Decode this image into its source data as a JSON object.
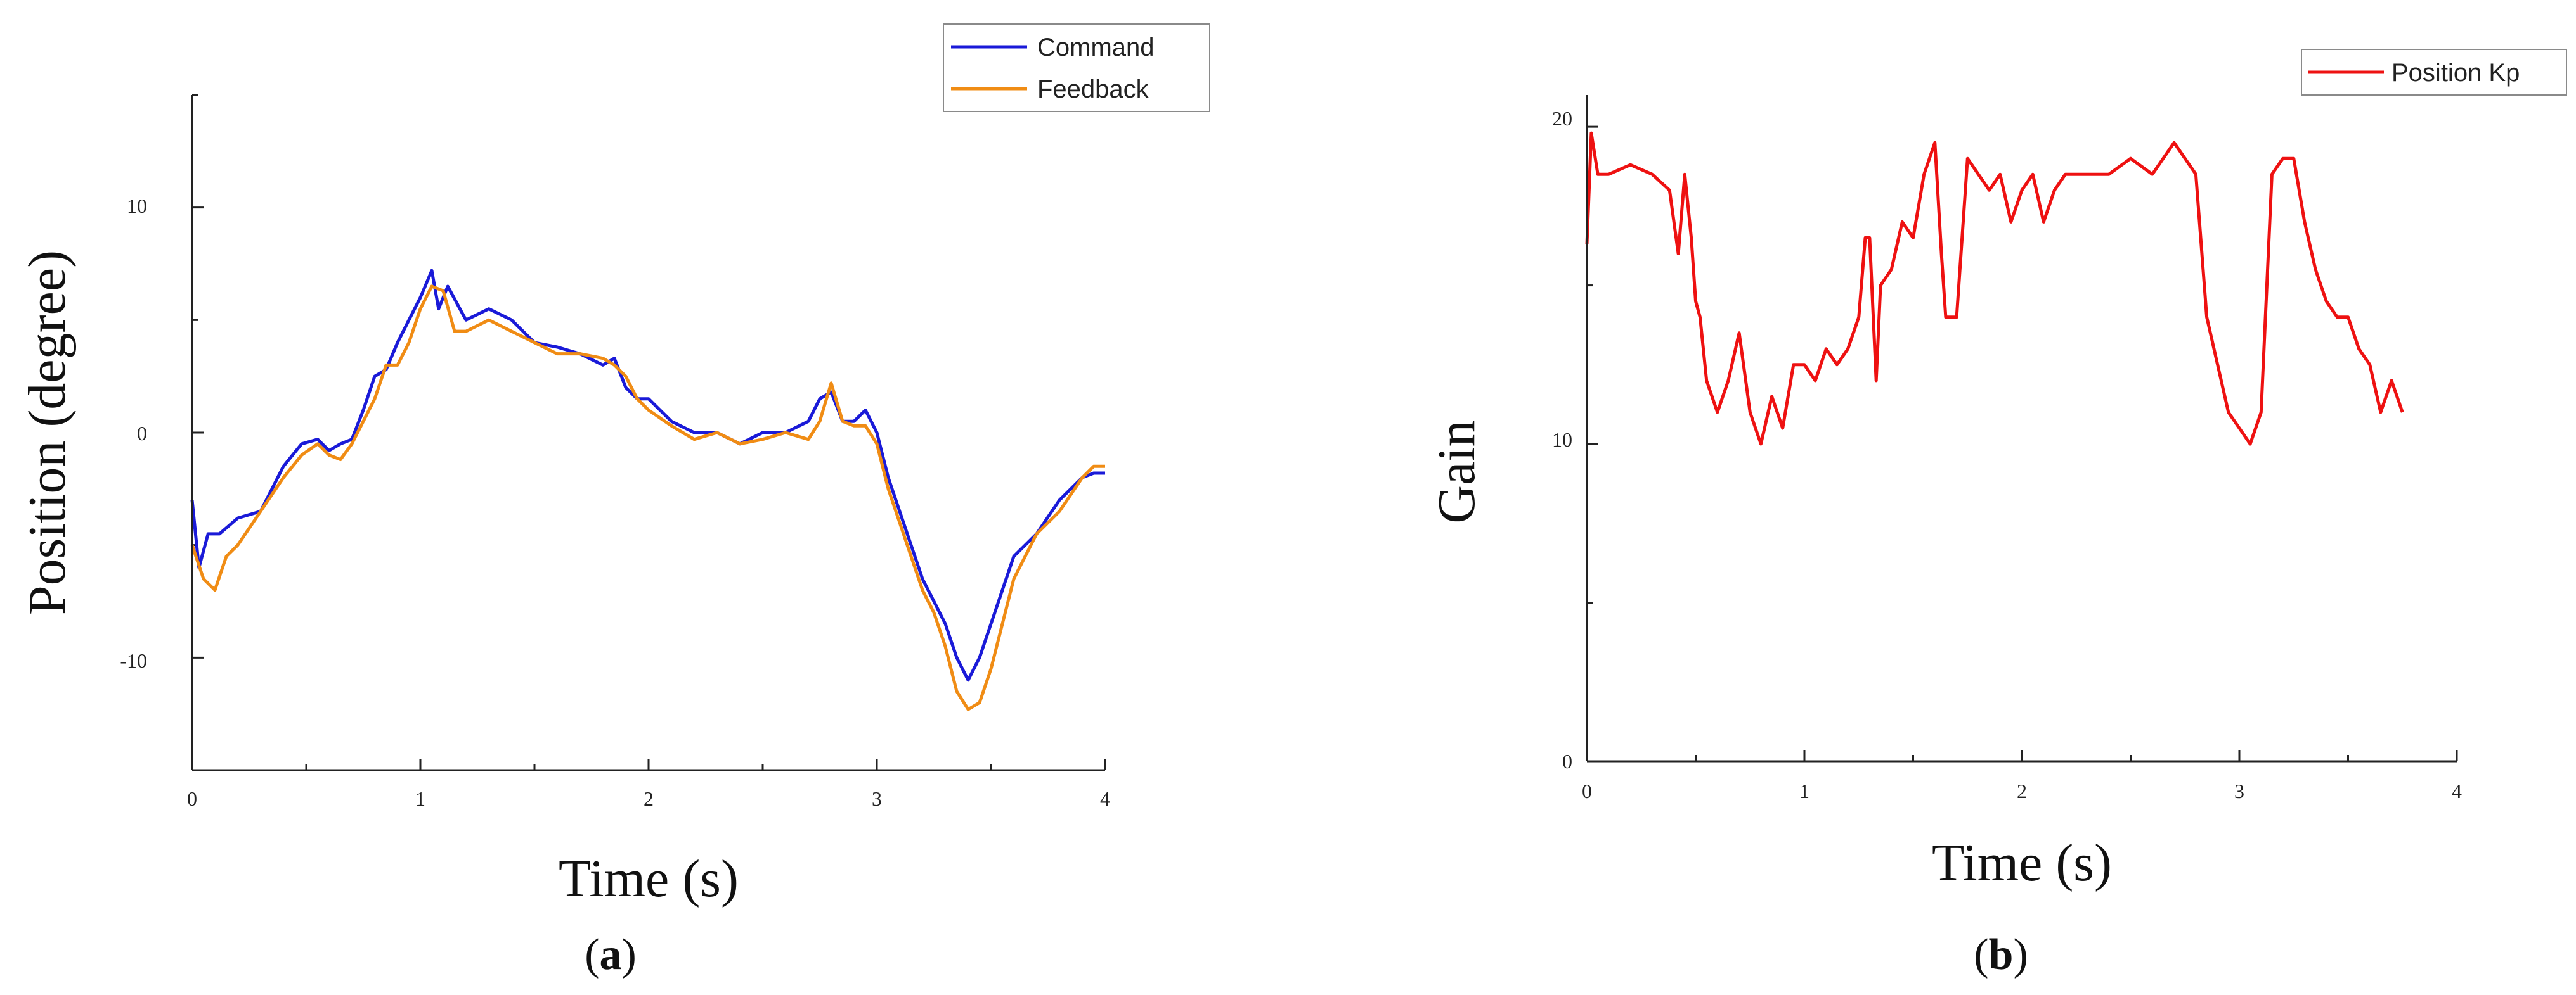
{
  "chart_data": [
    {
      "type": "line",
      "panel_label": "a",
      "xlabel": "Time (s)",
      "ylabel": "Position (degree)",
      "xlim": [
        0,
        4
      ],
      "ylim": [
        -15,
        15
      ],
      "xticks": [
        0,
        1,
        2,
        3,
        4
      ],
      "yticks": [
        -10,
        0,
        10
      ],
      "grid": false,
      "legend_position": "top-right",
      "series": [
        {
          "name": "Command",
          "color": "#1a1ad8",
          "x": [
            0.0,
            0.03,
            0.07,
            0.12,
            0.2,
            0.3,
            0.4,
            0.48,
            0.55,
            0.6,
            0.65,
            0.7,
            0.75,
            0.8,
            0.85,
            0.9,
            0.95,
            1.0,
            1.05,
            1.08,
            1.12,
            1.2,
            1.3,
            1.4,
            1.5,
            1.6,
            1.7,
            1.8,
            1.85,
            1.9,
            1.95,
            2.0,
            2.1,
            2.2,
            2.3,
            2.4,
            2.5,
            2.6,
            2.7,
            2.75,
            2.8,
            2.85,
            2.9,
            2.95,
            3.0,
            3.05,
            3.1,
            3.15,
            3.2,
            3.25,
            3.3,
            3.35,
            3.4,
            3.45,
            3.5,
            3.55,
            3.6,
            3.7,
            3.8,
            3.9,
            3.95,
            4.0
          ],
          "values": [
            -3,
            -6,
            -4.5,
            -4.5,
            -3.8,
            -3.5,
            -1.5,
            -0.5,
            -0.3,
            -0.8,
            -0.5,
            -0.3,
            1.0,
            2.5,
            2.8,
            4.0,
            5.0,
            6.0,
            7.2,
            5.5,
            6.5,
            5.0,
            5.5,
            5.0,
            4.0,
            3.8,
            3.5,
            3.0,
            3.3,
            2.0,
            1.5,
            1.5,
            0.5,
            0.0,
            0.0,
            -0.5,
            0.0,
            0.0,
            0.5,
            1.5,
            1.8,
            0.5,
            0.5,
            1.0,
            0.0,
            -2.0,
            -3.5,
            -5.0,
            -6.5,
            -7.5,
            -8.5,
            -10.0,
            -11.0,
            -10.0,
            -8.5,
            -7.0,
            -5.5,
            -4.5,
            -3.0,
            -2.0,
            -1.8,
            -1.8
          ]
        },
        {
          "name": "Feedback",
          "color": "#f08c14",
          "x": [
            0.0,
            0.05,
            0.1,
            0.15,
            0.2,
            0.3,
            0.4,
            0.48,
            0.55,
            0.6,
            0.65,
            0.7,
            0.75,
            0.8,
            0.85,
            0.9,
            0.95,
            1.0,
            1.05,
            1.1,
            1.15,
            1.2,
            1.3,
            1.4,
            1.5,
            1.6,
            1.7,
            1.8,
            1.85,
            1.9,
            1.95,
            2.0,
            2.1,
            2.2,
            2.3,
            2.4,
            2.5,
            2.6,
            2.7,
            2.75,
            2.8,
            2.85,
            2.9,
            2.95,
            3.0,
            3.05,
            3.1,
            3.15,
            3.2,
            3.25,
            3.3,
            3.35,
            3.4,
            3.45,
            3.5,
            3.55,
            3.6,
            3.7,
            3.8,
            3.9,
            3.95,
            4.0
          ],
          "values": [
            -5,
            -6.5,
            -7.0,
            -5.5,
            -5.0,
            -3.5,
            -2.0,
            -1.0,
            -0.5,
            -1.0,
            -1.2,
            -0.5,
            0.5,
            1.5,
            3.0,
            3.0,
            4.0,
            5.5,
            6.5,
            6.3,
            4.5,
            4.5,
            5.0,
            4.5,
            4.0,
            3.5,
            3.5,
            3.3,
            3.0,
            2.5,
            1.5,
            1.0,
            0.3,
            -0.3,
            0.0,
            -0.5,
            -0.3,
            0.0,
            -0.3,
            0.5,
            2.2,
            0.5,
            0.3,
            0.3,
            -0.5,
            -2.5,
            -4.0,
            -5.5,
            -7.0,
            -8.0,
            -9.5,
            -11.5,
            -12.3,
            -12.0,
            -10.5,
            -8.5,
            -6.5,
            -4.5,
            -3.5,
            -2.0,
            -1.5,
            -1.5
          ]
        }
      ]
    },
    {
      "type": "line",
      "panel_label": "b",
      "xlabel": "Time (s)",
      "ylabel": "Gain",
      "xlim": [
        0,
        4
      ],
      "ylim": [
        0,
        21
      ],
      "xticks": [
        0,
        1,
        2,
        3,
        4
      ],
      "yticks": [
        0,
        10,
        20
      ],
      "grid": false,
      "legend_position": "top-right",
      "series": [
        {
          "name": "Position Kp",
          "color": "#ee1111",
          "x": [
            0.0,
            0.02,
            0.05,
            0.1,
            0.2,
            0.3,
            0.38,
            0.42,
            0.45,
            0.48,
            0.5,
            0.52,
            0.55,
            0.6,
            0.65,
            0.7,
            0.75,
            0.8,
            0.85,
            0.9,
            0.95,
            1.0,
            1.05,
            1.1,
            1.15,
            1.2,
            1.25,
            1.28,
            1.3,
            1.33,
            1.35,
            1.4,
            1.45,
            1.5,
            1.55,
            1.6,
            1.63,
            1.65,
            1.7,
            1.75,
            1.8,
            1.85,
            1.9,
            1.95,
            2.0,
            2.05,
            2.1,
            2.15,
            2.2,
            2.3,
            2.4,
            2.5,
            2.6,
            2.7,
            2.8,
            2.85,
            2.9,
            2.95,
            3.0,
            3.05,
            3.1,
            3.15,
            3.2,
            3.25,
            3.3,
            3.35,
            3.4,
            3.45,
            3.5,
            3.55,
            3.6,
            3.65,
            3.7,
            3.75
          ],
          "values": [
            16.3,
            19.8,
            18.5,
            18.5,
            18.8,
            18.5,
            18.0,
            16.0,
            18.5,
            16.5,
            14.5,
            14.0,
            12.0,
            11.0,
            12.0,
            13.5,
            11.0,
            10.0,
            11.5,
            10.5,
            12.5,
            12.5,
            12.0,
            13.0,
            12.5,
            13.0,
            14.0,
            16.5,
            16.5,
            12.0,
            15.0,
            15.5,
            17.0,
            16.5,
            18.5,
            19.5,
            16.0,
            14.0,
            14.0,
            19.0,
            18.5,
            18.0,
            18.5,
            17.0,
            18.0,
            18.5,
            17.0,
            18.0,
            18.5,
            18.5,
            18.5,
            19.0,
            18.5,
            19.5,
            18.5,
            14.0,
            12.5,
            11.0,
            10.5,
            10.0,
            11.0,
            18.5,
            19.0,
            19.0,
            17.0,
            15.5,
            14.5,
            14.0,
            14.0,
            13.0,
            12.5,
            11.0,
            12.0,
            11.0
          ]
        }
      ]
    }
  ]
}
